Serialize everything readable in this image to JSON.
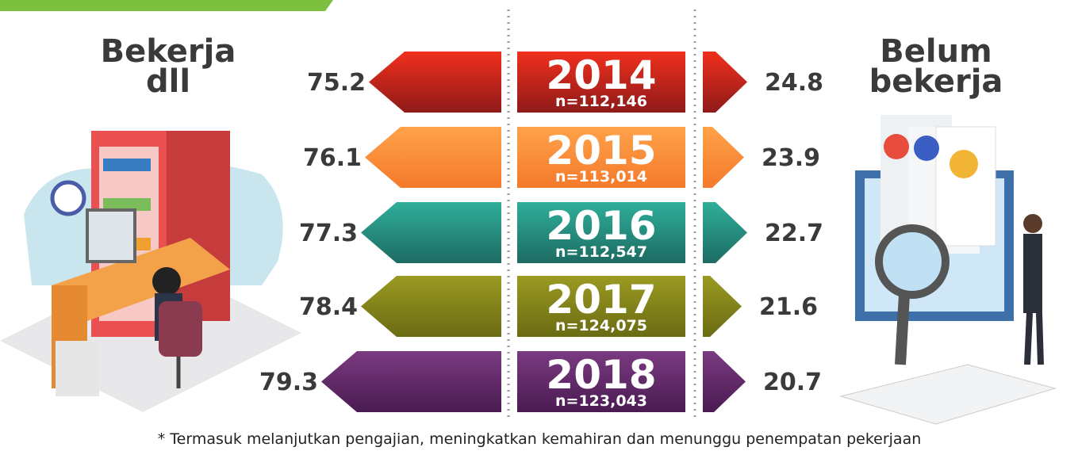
{
  "left_label": [
    "Bekerja",
    "dll"
  ],
  "right_label": [
    "Belum",
    "bekerja"
  ],
  "rows": [
    {
      "year": "2014",
      "n": "n=112,146",
      "left": "75.2",
      "right": "24.8"
    },
    {
      "year": "2015",
      "n": "n=113,014",
      "left": "76.1",
      "right": "23.9"
    },
    {
      "year": "2016",
      "n": "n=112,547",
      "left": "77.3",
      "right": "22.7"
    },
    {
      "year": "2017",
      "n": "n=124,075",
      "left": "78.4",
      "right": "21.6"
    },
    {
      "year": "2018",
      "n": "n=123,043",
      "left": "79.3",
      "right": "20.7"
    }
  ],
  "footnote": "* Termasuk melanjutkan pengajian, meningkatkan kemahiran dan menunggu penempatan pekerjaan"
}
